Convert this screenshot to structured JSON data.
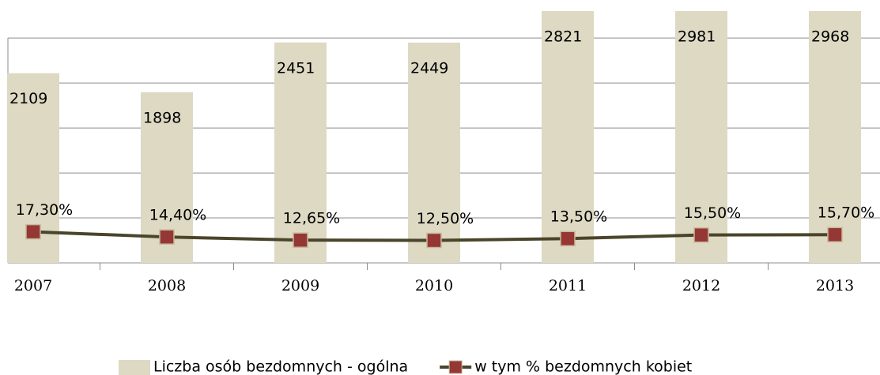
{
  "chart_data": {
    "type": "bar_line",
    "categories": [
      "2007",
      "2008",
      "2009",
      "2010",
      "2011",
      "2012",
      "2013"
    ],
    "series": [
      {
        "name": "Liczba osób bezdomnych - ogólna",
        "type": "bar",
        "color": "#ddd9c3",
        "values": [
          2109,
          1898,
          2451,
          2449,
          2821,
          2981,
          2968
        ]
      },
      {
        "name": "w tym % bezdomnych kobiet",
        "type": "line",
        "axis": "y2",
        "color": "#4a452a",
        "marker_color": "#953735",
        "values": [
          17.3,
          14.4,
          12.65,
          12.5,
          13.5,
          15.5,
          15.7
        ],
        "value_labels": [
          "17,30%",
          "14,40%",
          "12,65%",
          "12,50%",
          "13,50%",
          "15,50%",
          "15,70%"
        ]
      }
    ],
    "ylim": [
      0,
      2800
    ],
    "yticks": [
      0,
      500,
      1000,
      1500,
      2000,
      2500
    ],
    "y2lim": [
      0,
      140
    ],
    "grid": true,
    "legend": "bottom"
  }
}
